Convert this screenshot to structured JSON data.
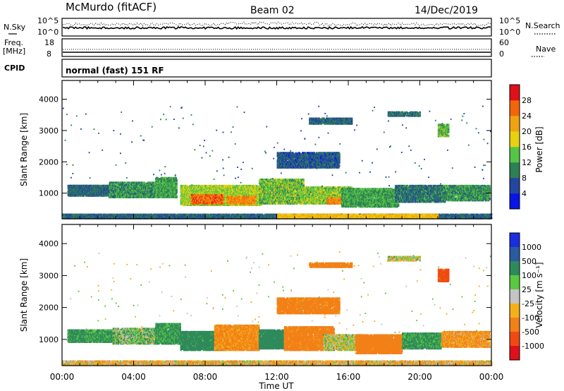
{
  "header": {
    "station": "McMurdo (fitACF)",
    "beam": "Beam 02",
    "date": "14/Dec/2019"
  },
  "strip_nsky": {
    "left_label": "N.Sky",
    "right_label": "N.Search",
    "left_ticks": [
      "10^5",
      "10^0"
    ],
    "right_ticks": [
      "10^5",
      "10^0"
    ]
  },
  "strip_freq": {
    "left_label": "Freq.",
    "left_unit": "[MHz]",
    "right_label": "Nave",
    "left_ticks": [
      "18",
      "8"
    ],
    "right_ticks": [
      "60",
      "0"
    ]
  },
  "strip_cpid": {
    "label": "CPID",
    "text": "normal (fast) 151 RF"
  },
  "colors": {
    "power": [
      "#0a14e6",
      "#2446a0",
      "#2e7f55",
      "#55c447",
      "#e8d10f",
      "#f0a312",
      "#f2660b",
      "#e0101a"
    ],
    "velocity": [
      "#1a2ee0",
      "#2a5aa0",
      "#2f8a5a",
      "#5ac840",
      "#c4c4c4",
      "#f4b01a",
      "#f28018",
      "#f04a12",
      "#e0101a"
    ]
  },
  "chart_data": [
    {
      "type": "heatmap",
      "xlabel": "",
      "ylabel": "Slant Range [km]",
      "x_ticks": [
        "00:00",
        "04:00",
        "08:00",
        "12:00",
        "16:00",
        "20:00",
        "00:00"
      ],
      "y_ticks": [
        1000,
        2000,
        3000,
        4000
      ],
      "ylim": [
        180,
        4600
      ],
      "xlim_hours": [
        0,
        24
      ],
      "colorbar": {
        "label": "Power [dB]",
        "ticks": [
          "4",
          "8",
          "12",
          "16",
          "20",
          "24",
          "28"
        ]
      },
      "regions": [
        {
          "t0": 0.3,
          "t1": 2.6,
          "r0": 900,
          "r1": 1250,
          "v": 6
        },
        {
          "t0": 2.6,
          "t1": 5.4,
          "r0": 850,
          "r1": 1350,
          "v": 9
        },
        {
          "t0": 5.2,
          "t1": 6.4,
          "r0": 850,
          "r1": 1500,
          "v": 10
        },
        {
          "t0": 6.6,
          "t1": 11.2,
          "r0": 600,
          "r1": 1250,
          "v": 14
        },
        {
          "t0": 7.2,
          "t1": 9.0,
          "r0": 650,
          "r1": 950,
          "v": 24
        },
        {
          "t0": 9.2,
          "t1": 10.8,
          "r0": 650,
          "r1": 900,
          "v": 22
        },
        {
          "t0": 11.0,
          "t1": 13.5,
          "r0": 650,
          "r1": 1450,
          "v": 12
        },
        {
          "t0": 13.3,
          "t1": 16.2,
          "r0": 650,
          "r1": 1200,
          "v": 13
        },
        {
          "t0": 14.8,
          "t1": 15.8,
          "r0": 650,
          "r1": 850,
          "v": 22
        },
        {
          "t0": 15.6,
          "t1": 18.8,
          "r0": 550,
          "r1": 1150,
          "v": 10
        },
        {
          "t0": 18.6,
          "t1": 21.4,
          "r0": 700,
          "r1": 1250,
          "v": 7
        },
        {
          "t0": 21.2,
          "t1": 23.9,
          "r0": 750,
          "r1": 1250,
          "v": 9
        },
        {
          "t0": 0.0,
          "t1": 24.0,
          "r0": 180,
          "r1": 330,
          "v": 6
        },
        {
          "t0": 12.0,
          "t1": 21.0,
          "r0": 180,
          "r1": 330,
          "v": 18
        },
        {
          "t0": 13.8,
          "t1": 16.2,
          "r0": 3200,
          "r1": 3400,
          "v": 6
        },
        {
          "t0": 18.2,
          "t1": 20.0,
          "r0": 3450,
          "r1": 3600,
          "v": 7
        },
        {
          "t0": 21.0,
          "t1": 21.6,
          "r0": 2800,
          "r1": 3200,
          "v": 12
        },
        {
          "t0": 12.0,
          "t1": 15.5,
          "r0": 1800,
          "r1": 2300,
          "v": 5
        }
      ]
    },
    {
      "type": "heatmap",
      "xlabel": "Time UT",
      "ylabel": "Slant Range [km]",
      "x_ticks": [
        "00:00",
        "04:00",
        "08:00",
        "12:00",
        "16:00",
        "20:00",
        "00:00"
      ],
      "y_ticks": [
        1000,
        2000,
        3000,
        4000
      ],
      "ylim": [
        180,
        4600
      ],
      "xlim_hours": [
        0,
        24
      ],
      "colorbar": {
        "label": "Velocity [m s⁻¹]",
        "ticks": [
          "1000",
          "500",
          "100",
          "25",
          "-25",
          "-100",
          "-500",
          "-1000"
        ]
      },
      "regions": [
        {
          "t0": 0.3,
          "t1": 2.8,
          "r0": 900,
          "r1": 1300,
          "v": 150
        },
        {
          "t0": 2.8,
          "t1": 5.4,
          "r0": 850,
          "r1": 1350,
          "v": 60
        },
        {
          "t0": 5.2,
          "t1": 6.6,
          "r0": 850,
          "r1": 1500,
          "v": 150
        },
        {
          "t0": 6.6,
          "t1": 9.2,
          "r0": 650,
          "r1": 1250,
          "v": 200
        },
        {
          "t0": 8.5,
          "t1": 11.0,
          "r0": 650,
          "r1": 1450,
          "v": -150
        },
        {
          "t0": 11.0,
          "t1": 12.4,
          "r0": 700,
          "r1": 1300,
          "v": 300
        },
        {
          "t0": 12.4,
          "t1": 15.2,
          "r0": 650,
          "r1": 1400,
          "v": -200
        },
        {
          "t0": 14.6,
          "t1": 16.8,
          "r0": 650,
          "r1": 1150,
          "v": 0
        },
        {
          "t0": 16.4,
          "t1": 19.0,
          "r0": 550,
          "r1": 1150,
          "v": -250
        },
        {
          "t0": 19.0,
          "t1": 21.2,
          "r0": 700,
          "r1": 1200,
          "v": 150
        },
        {
          "t0": 21.2,
          "t1": 23.9,
          "r0": 750,
          "r1": 1250,
          "v": -120
        },
        {
          "t0": 0.0,
          "t1": 24.0,
          "r0": 180,
          "r1": 330,
          "v": -60
        },
        {
          "t0": 13.8,
          "t1": 16.2,
          "r0": 3250,
          "r1": 3400,
          "v": -200
        },
        {
          "t0": 18.2,
          "t1": 20.0,
          "r0": 3450,
          "r1": 3600,
          "v": 0
        },
        {
          "t0": 21.0,
          "t1": 21.6,
          "r0": 2800,
          "r1": 3200,
          "v": -600
        },
        {
          "t0": 12.0,
          "t1": 15.5,
          "r0": 1800,
          "r1": 2300,
          "v": -200
        }
      ]
    }
  ]
}
